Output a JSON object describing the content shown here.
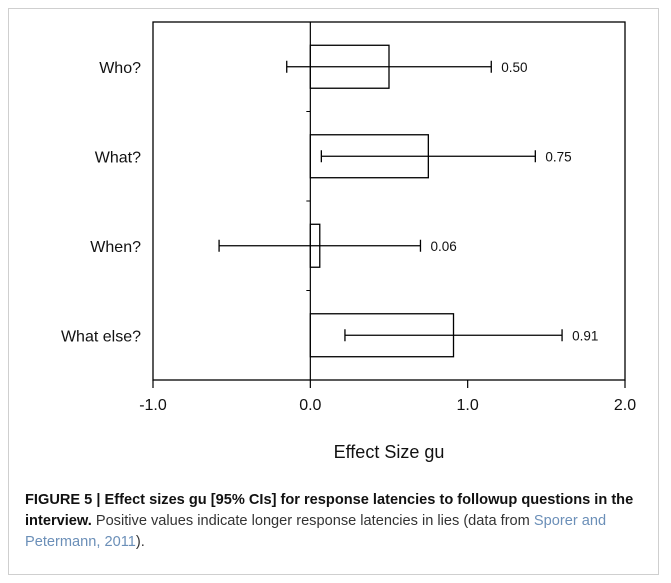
{
  "chart_data": {
    "type": "bar",
    "orientation": "horizontal",
    "categories": [
      "Who?",
      "What?",
      "When?",
      "What else?"
    ],
    "values": [
      0.5,
      0.75,
      0.06,
      0.91
    ],
    "ci_lower": [
      -0.15,
      0.07,
      -0.58,
      0.22
    ],
    "ci_upper": [
      1.15,
      1.43,
      0.7,
      1.6
    ],
    "data_labels": [
      "0.50",
      "0.75",
      "0.06",
      "0.91"
    ],
    "xlim": [
      -1.0,
      2.0
    ],
    "xticks": [
      -1.0,
      0.0,
      1.0,
      2.0
    ],
    "xtick_labels": [
      "-1.0",
      "0.0",
      "1.0",
      "2.0"
    ],
    "xlabel": "Effect Size gu",
    "ylabel": "",
    "grid": false
  },
  "caption": {
    "lead": "FIGURE 5 | Effect sizes gu [95% CIs] for response latencies to followup questions in the interview.",
    "text_before_link": " Positive values indicate longer response latencies in lies (data from ",
    "link_text": "Sporer and Petermann, 2011",
    "text_after_link": ")."
  }
}
